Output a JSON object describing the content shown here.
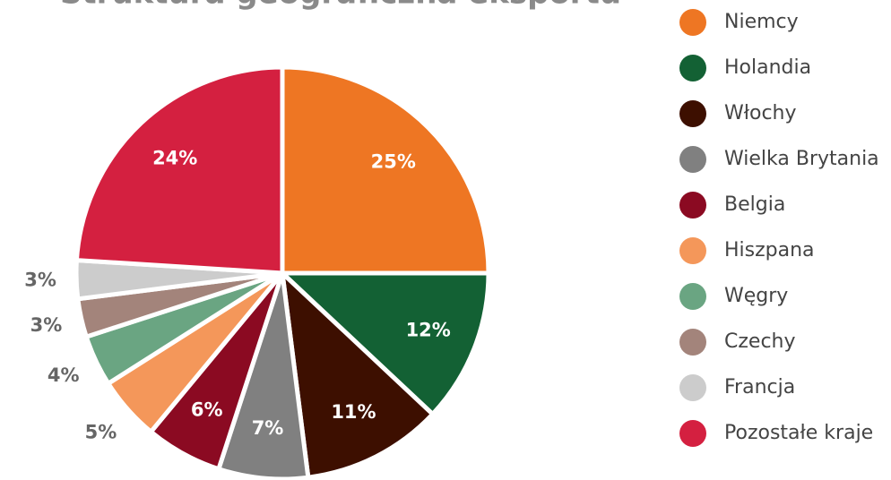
{
  "chart_data": {
    "type": "pie",
    "title": "Struktura geograficzna eksportu",
    "categories": [
      "Niemcy",
      "Holandia",
      "Włochy",
      "Wielka Brytania",
      "Belgia",
      "Hiszpana",
      "Węgry",
      "Czechy",
      "Francja",
      "Pozostałe kraje"
    ],
    "values": [
      25,
      12,
      11,
      7,
      6,
      5,
      4,
      3,
      3,
      24
    ],
    "value_labels": [
      "25%",
      "12%",
      "11%",
      "7%",
      "6%",
      "5%",
      "4%",
      "3%",
      "3%",
      "24%"
    ],
    "colors": [
      "#ee7623",
      "#136134",
      "#3d0f00",
      "#808080",
      "#8b0a22",
      "#f4975a",
      "#6aa582",
      "#a3847b",
      "#cccccc",
      "#d42040"
    ],
    "legend": "right"
  }
}
